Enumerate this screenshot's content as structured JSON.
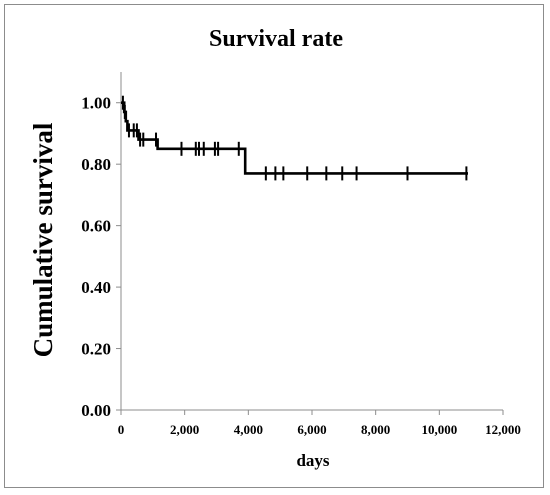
{
  "chart_data": {
    "type": "line",
    "title": "Survival rate",
    "xlabel": "days",
    "ylabel": "Cumulative survival",
    "xlim": [
      0,
      12000
    ],
    "ylim": [
      0,
      1.1
    ],
    "x_ticks": [
      0,
      2000,
      4000,
      6000,
      8000,
      10000,
      12000
    ],
    "x_tick_labels": [
      "0",
      "2,000",
      "4,000",
      "6,000",
      "8,000",
      "10,000",
      "12,000"
    ],
    "y_ticks": [
      0,
      0.2,
      0.4,
      0.6,
      0.8,
      1.0
    ],
    "y_tick_labels": [
      "0.00",
      "0.20",
      "0.40",
      "0.60",
      "0.80",
      "1.00"
    ],
    "grid": false,
    "line_color": "#000000",
    "series": [
      {
        "step_points": [
          [
            0,
            1.0
          ],
          [
            100,
            1.0
          ],
          [
            100,
            0.97
          ],
          [
            150,
            0.97
          ],
          [
            150,
            0.94
          ],
          [
            200,
            0.94
          ],
          [
            200,
            0.91
          ],
          [
            550,
            0.91
          ],
          [
            550,
            0.88
          ],
          [
            1150,
            0.88
          ],
          [
            1150,
            0.85
          ],
          [
            3900,
            0.85
          ],
          [
            3900,
            0.77
          ],
          [
            10900,
            0.77
          ]
        ],
        "censored": [
          [
            60,
            1.0
          ],
          [
            120,
            0.97
          ],
          [
            250,
            0.91
          ],
          [
            400,
            0.91
          ],
          [
            500,
            0.91
          ],
          [
            600,
            0.88
          ],
          [
            700,
            0.88
          ],
          [
            1100,
            0.88
          ],
          [
            1900,
            0.85
          ],
          [
            2350,
            0.85
          ],
          [
            2450,
            0.85
          ],
          [
            2600,
            0.85
          ],
          [
            2950,
            0.85
          ],
          [
            3050,
            0.85
          ],
          [
            3700,
            0.85
          ],
          [
            4550,
            0.77
          ],
          [
            4850,
            0.77
          ],
          [
            5100,
            0.77
          ],
          [
            5850,
            0.77
          ],
          [
            6450,
            0.77
          ],
          [
            6950,
            0.77
          ],
          [
            7400,
            0.77
          ],
          [
            9000,
            0.77
          ],
          [
            10850,
            0.77
          ]
        ]
      }
    ]
  }
}
